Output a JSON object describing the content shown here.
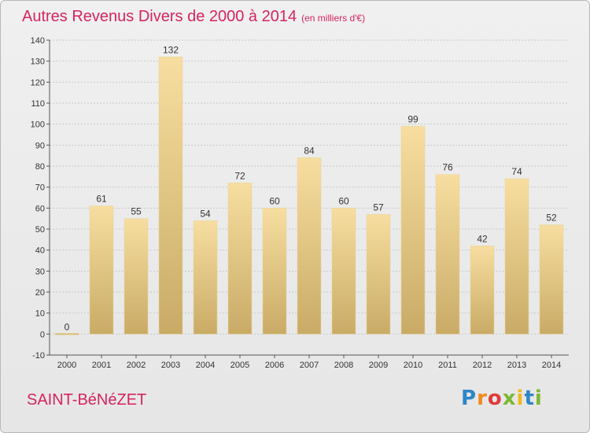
{
  "title": "Autres Revenus Divers de 2000 à 2014",
  "unit": "(en milliers d'€)",
  "location": "SAINT-BéNéZET",
  "logo": [
    "P",
    "r",
    "o",
    "x",
    "i",
    "t",
    "i"
  ],
  "colors": {
    "accent": "#d5245e",
    "bar_top": "#f7dea0",
    "bar_bottom": "#c9ab66"
  },
  "chart_data": {
    "type": "bar",
    "categories": [
      "2000",
      "2001",
      "2002",
      "2003",
      "2004",
      "2005",
      "2006",
      "2007",
      "2008",
      "2009",
      "2010",
      "2011",
      "2012",
      "2013",
      "2014"
    ],
    "values": [
      0,
      61,
      55,
      132,
      54,
      72,
      60,
      84,
      60,
      57,
      99,
      76,
      42,
      74,
      52
    ],
    "yticks": [
      -10,
      0,
      10,
      20,
      30,
      40,
      50,
      60,
      70,
      80,
      90,
      100,
      110,
      120,
      130,
      140
    ],
    "ylim": [
      -10,
      140
    ],
    "grid": true
  }
}
